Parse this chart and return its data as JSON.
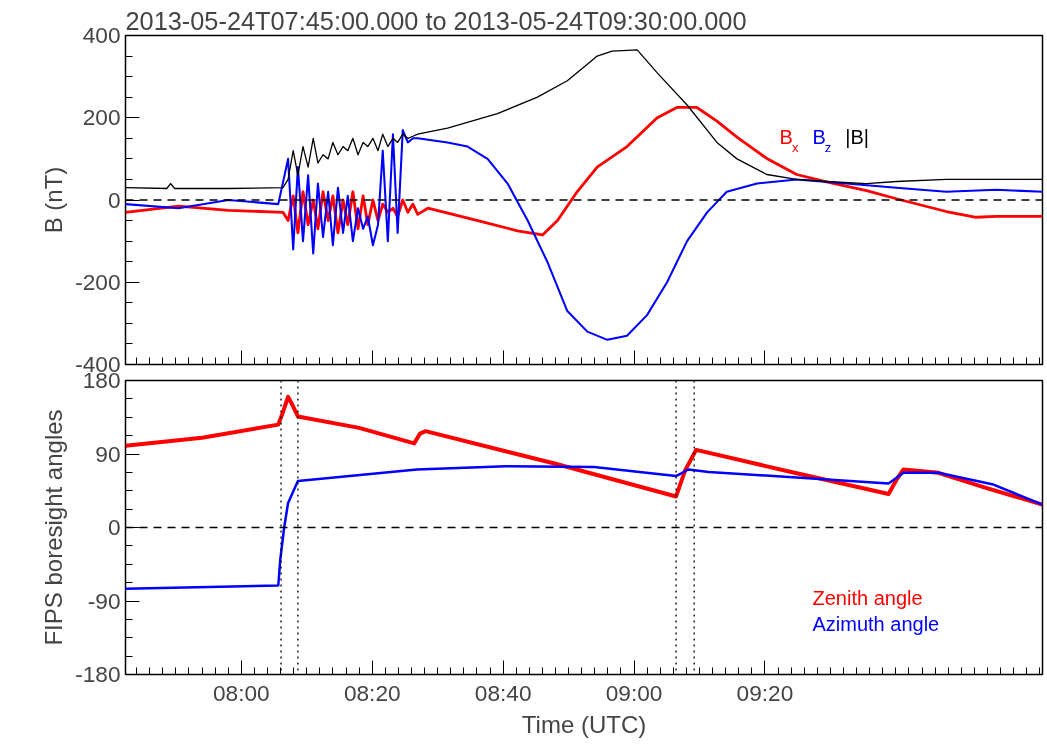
{
  "chart_data": [
    {
      "type": "line",
      "title": "2013-05-24T07:45:00.000 to 2013-05-24T09:30:00.000",
      "ylabel": "B (nT)",
      "xlim": [
        7.705,
        10.04
      ],
      "xticks": [
        {
          "value": 8,
          "label": null
        },
        {
          "value": 8.3333,
          "label": null
        },
        {
          "value": 8.6667,
          "label": null
        },
        {
          "value": 9,
          "label": null
        },
        {
          "value": 9.3333,
          "label": null
        }
      ],
      "ylim": [
        -400,
        400
      ],
      "yticks": [
        -400,
        -200,
        0,
        200,
        400
      ],
      "tick_labels": "y",
      "grid": false,
      "legend": "top right",
      "ref_lines": [
        {
          "axis": "y",
          "value": 0,
          "line_style": "dashed",
          "color": "#000000"
        }
      ],
      "series": [
        {
          "name": "B$_{x}$",
          "color": "#ff0000",
          "x": [
            7.705,
            7.84,
            7.967,
            8.106,
            8.119,
            8.132,
            8.144,
            8.157,
            8.17,
            8.183,
            8.195,
            8.208,
            8.221,
            8.233,
            8.246,
            8.259,
            8.271,
            8.284,
            8.297,
            8.31,
            8.322,
            8.335,
            8.348,
            8.36,
            8.373,
            8.386,
            8.398,
            8.411,
            8.424,
            8.437,
            8.449,
            8.475,
            8.602,
            8.703,
            8.767,
            8.805,
            8.855,
            8.906,
            8.982,
            9.059,
            9.109,
            9.16,
            9.211,
            9.262,
            9.338,
            9.414,
            9.49,
            9.592,
            9.668,
            9.795,
            9.871,
            9.922,
            10.04
          ],
          "values": [
            -30,
            -15,
            -25,
            -30,
            -50,
            10,
            -80,
            20,
            -60,
            0,
            -70,
            20,
            -50,
            10,
            -80,
            0,
            -60,
            20,
            -70,
            10,
            -60,
            0,
            -50,
            -10,
            -30,
            -20,
            -40,
            0,
            -30,
            -10,
            -35,
            -20,
            -50,
            -75,
            -85,
            -50,
            20,
            80,
            130,
            200,
            225,
            225,
            192,
            153,
            101,
            62,
            44,
            23,
            3,
            -28,
            -42,
            -40,
            -40
          ]
        },
        {
          "name": "B$_{z}$",
          "color": "#0000ff",
          "x": [
            7.705,
            7.84,
            7.967,
            8.094,
            8.119,
            8.132,
            8.144,
            8.157,
            8.17,
            8.183,
            8.195,
            8.208,
            8.221,
            8.233,
            8.246,
            8.259,
            8.271,
            8.284,
            8.297,
            8.31,
            8.322,
            8.335,
            8.348,
            8.36,
            8.373,
            8.386,
            8.398,
            8.411,
            8.424,
            8.437,
            8.449,
            8.525,
            8.576,
            8.627,
            8.678,
            8.729,
            8.779,
            8.83,
            8.881,
            8.932,
            8.982,
            9.033,
            9.084,
            9.135,
            9.186,
            9.236,
            9.313,
            9.414,
            9.54,
            9.668,
            9.795,
            9.922,
            10.04
          ],
          "values": [
            -10,
            -20,
            0,
            -10,
            100,
            -120,
            80,
            -100,
            60,
            -130,
            40,
            -90,
            20,
            -110,
            30,
            -80,
            10,
            -100,
            -20,
            -70,
            -40,
            -110,
            -60,
            120,
            -100,
            160,
            -80,
            170,
            140,
            150,
            150,
            140,
            130,
            100,
            40,
            -50,
            -150,
            -270,
            -320,
            -340,
            -330,
            -280,
            -200,
            -100,
            -30,
            20,
            40,
            50,
            40,
            30,
            20,
            25,
            20
          ]
        },
        {
          "name": "|B|",
          "color": "#000000",
          "x": [
            7.705,
            7.81,
            7.82,
            7.83,
            7.967,
            8.106,
            8.119,
            8.132,
            8.144,
            8.157,
            8.17,
            8.183,
            8.195,
            8.208,
            8.221,
            8.233,
            8.246,
            8.259,
            8.271,
            8.284,
            8.297,
            8.31,
            8.322,
            8.335,
            8.348,
            8.36,
            8.373,
            8.386,
            8.398,
            8.411,
            8.424,
            8.437,
            8.449,
            8.525,
            8.652,
            8.754,
            8.83,
            8.881,
            8.906,
            8.944,
            9.008,
            9.059,
            9.135,
            9.211,
            9.262,
            9.338,
            9.414,
            9.49,
            9.592,
            9.668,
            9.795,
            9.922,
            10.04
          ],
          "values": [
            30,
            28,
            40,
            28,
            28,
            30,
            50,
            120,
            60,
            130,
            80,
            150,
            90,
            110,
            100,
            140,
            110,
            130,
            120,
            150,
            110,
            140,
            130,
            150,
            120,
            160,
            130,
            150,
            140,
            160,
            150,
            155,
            160,
            175,
            210,
            250,
            290,
            330,
            350,
            362,
            365,
            309,
            231,
            140,
            100,
            62,
            50,
            45,
            40,
            45,
            50,
            50,
            50
          ]
        }
      ]
    },
    {
      "type": "line",
      "xlabel": "Time (UTC)",
      "ylabel": "FIPS boresight angles",
      "xlim": [
        7.705,
        10.04
      ],
      "xticks": [
        {
          "value": 8,
          "label": "08:00"
        },
        {
          "value": 8.3333,
          "label": "08:20"
        },
        {
          "value": 8.6667,
          "label": "08:40"
        },
        {
          "value": 9,
          "label": "09:00"
        },
        {
          "value": 9.3333,
          "label": "09:20"
        }
      ],
      "ylim": [
        -180,
        180
      ],
      "yticks": [
        -180,
        -90,
        0,
        90,
        180
      ],
      "grid": false,
      "legend": "bottom right",
      "ref_lines": [
        {
          "axis": "y",
          "value": 0,
          "line_style": "dashed",
          "color": "#000000"
        },
        {
          "axis": "x",
          "value": 8.101,
          "line_style": "dotted",
          "color": "#000000"
        },
        {
          "axis": "x",
          "value": 8.144,
          "line_style": "dotted",
          "color": "#000000"
        },
        {
          "axis": "x",
          "value": 9.107,
          "line_style": "dotted",
          "color": "#000000"
        },
        {
          "axis": "x",
          "value": 9.153,
          "line_style": "dotted",
          "color": "#000000"
        }
      ],
      "series": [
        {
          "name": "Zenith angle",
          "color": "#ff0000",
          "x": [
            7.705,
            7.9,
            8.094,
            8.105,
            8.119,
            8.13,
            8.144,
            8.3,
            8.44,
            8.455,
            8.469,
            8.8,
            9.107,
            9.13,
            9.158,
            9.4,
            9.648,
            9.67,
            9.686,
            9.775,
            9.9,
            10.04
          ],
          "values": [
            100,
            110,
            126,
            140,
            160,
            150,
            136,
            122,
            103,
            115,
            118,
            78,
            38,
            70,
            95,
            68,
            41,
            60,
            71,
            67,
            48,
            28
          ]
        },
        {
          "name": "Azimuth angle",
          "color": "#0000ff",
          "x": [
            7.705,
            8.094,
            8.099,
            8.109,
            8.119,
            8.144,
            8.447,
            8.674,
            8.898,
            9.107,
            9.138,
            9.19,
            9.648,
            9.686,
            9.775,
            9.912,
            10.04
          ],
          "values": [
            -75,
            -71,
            -40,
            0,
            30,
            57,
            71,
            75,
            74,
            63,
            71,
            68,
            54,
            67,
            67,
            53,
            28
          ]
        }
      ]
    }
  ]
}
